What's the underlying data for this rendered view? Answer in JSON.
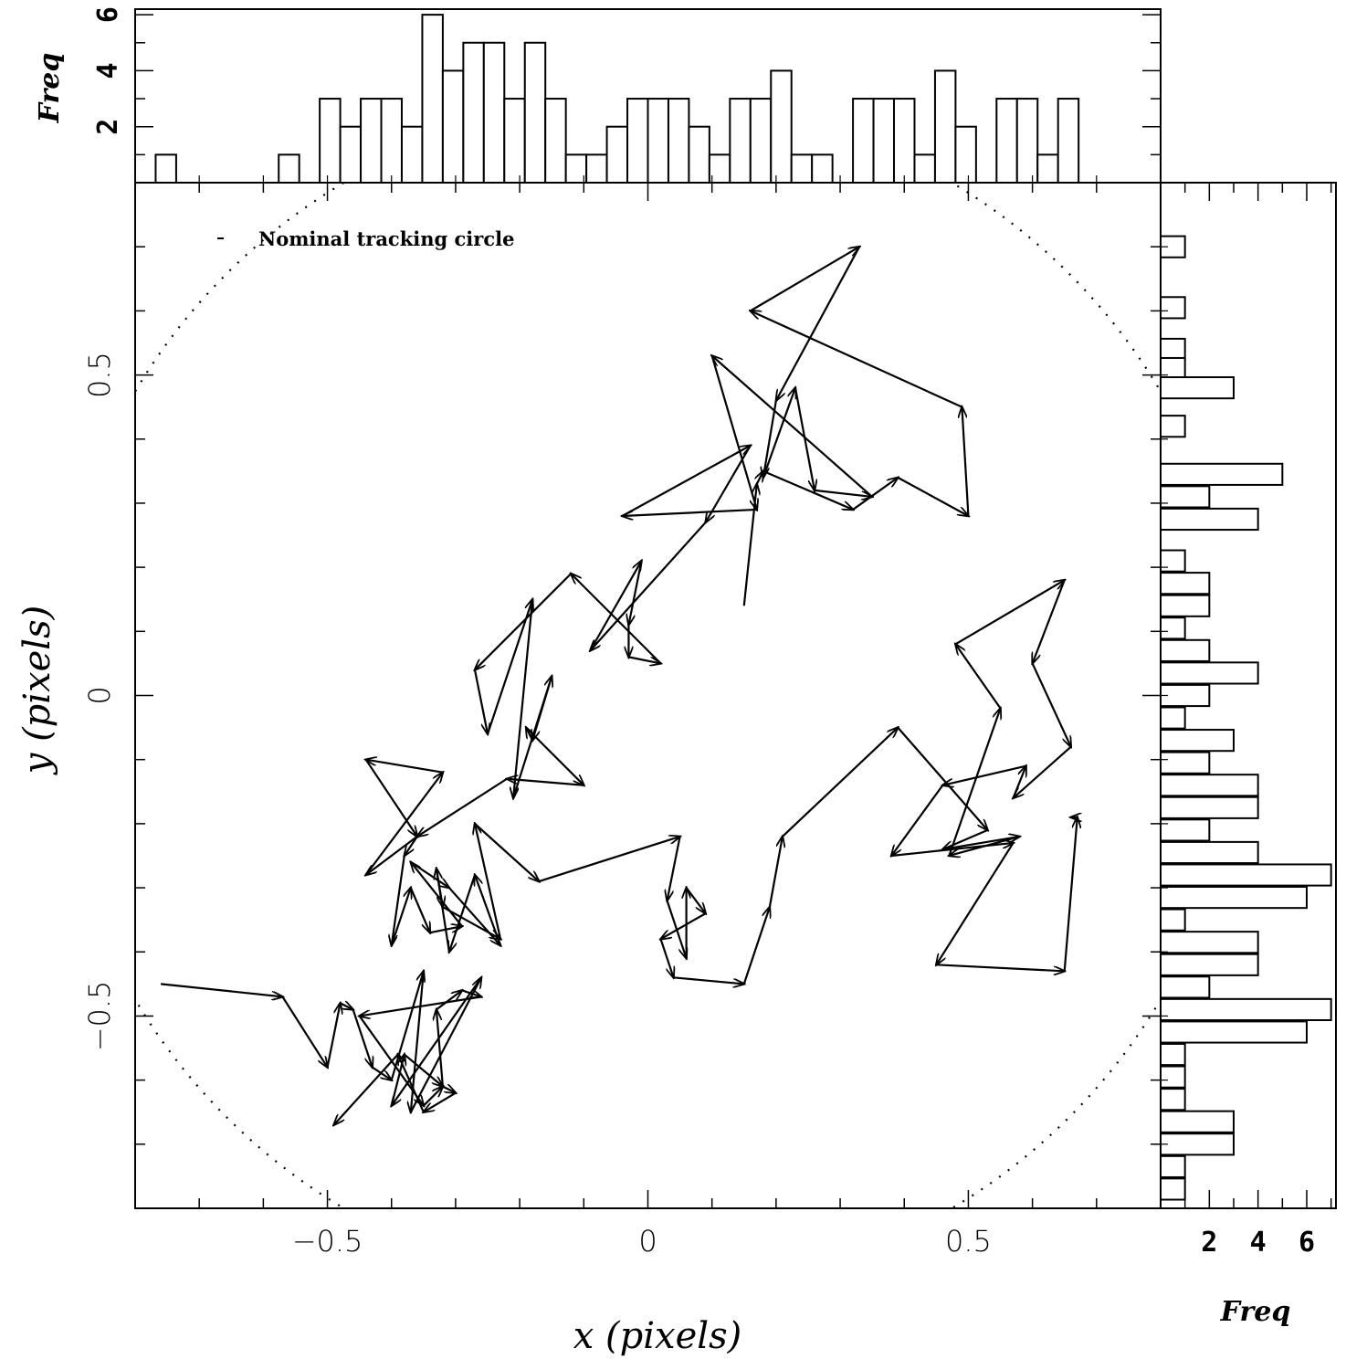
{
  "chart_data": {
    "type": "line",
    "annotation": "Nominal tracking circle",
    "xlabel": "x (pixels)",
    "ylabel": "y (pixels)",
    "xlim": [
      -0.8,
      0.8
    ],
    "ylim": [
      -0.8,
      0.8
    ],
    "xticks": [
      {
        "v": -0.5,
        "t": "−0.5"
      },
      {
        "v": 0,
        "t": "0"
      },
      {
        "v": 0.5,
        "t": "0.5"
      }
    ],
    "yticks": [
      {
        "v": -0.5,
        "t": "−0.5"
      },
      {
        "v": 0,
        "t": "0"
      },
      {
        "v": 0.5,
        "t": "0.5"
      }
    ],
    "grid": false,
    "path": [
      [
        0.15,
        0.14
      ],
      [
        0.17,
        0.33
      ],
      [
        0.18,
        0.35
      ],
      [
        0.32,
        0.29
      ],
      [
        0.39,
        0.34
      ],
      [
        0.5,
        0.28
      ],
      [
        0.49,
        0.45
      ],
      [
        0.16,
        0.6
      ],
      [
        0.33,
        0.7
      ],
      [
        0.2,
        0.46
      ],
      [
        0.18,
        0.34
      ],
      [
        0.23,
        0.48
      ],
      [
        0.26,
        0.32
      ],
      [
        0.35,
        0.31
      ],
      [
        0.1,
        0.53
      ],
      [
        0.17,
        0.29
      ],
      [
        -0.04,
        0.28
      ],
      [
        0.16,
        0.39
      ],
      [
        0.09,
        0.27
      ],
      [
        -0.09,
        0.07
      ],
      [
        -0.01,
        0.21
      ],
      [
        -0.03,
        0.11
      ],
      [
        -0.03,
        0.06
      ],
      [
        0.02,
        0.05
      ],
      [
        -0.12,
        0.19
      ],
      [
        -0.27,
        0.04
      ],
      [
        -0.25,
        -0.06
      ],
      [
        -0.18,
        0.15
      ],
      [
        -0.21,
        -0.16
      ],
      [
        -0.15,
        0.03
      ],
      [
        -0.18,
        -0.07
      ],
      [
        -0.19,
        -0.05
      ],
      [
        -0.1,
        -0.14
      ],
      [
        -0.22,
        -0.13
      ],
      [
        -0.36,
        -0.22
      ],
      [
        -0.44,
        -0.28
      ],
      [
        -0.32,
        -0.12
      ],
      [
        -0.44,
        -0.1
      ],
      [
        -0.36,
        -0.22
      ],
      [
        -0.38,
        -0.25
      ],
      [
        -0.4,
        -0.39
      ],
      [
        -0.37,
        -0.3
      ],
      [
        -0.34,
        -0.37
      ],
      [
        -0.29,
        -0.36
      ],
      [
        -0.37,
        -0.26
      ],
      [
        -0.31,
        -0.3
      ],
      [
        -0.23,
        -0.39
      ],
      [
        -0.27,
        -0.28
      ],
      [
        -0.31,
        -0.4
      ],
      [
        -0.33,
        -0.27
      ],
      [
        -0.32,
        -0.33
      ],
      [
        -0.23,
        -0.38
      ],
      [
        -0.27,
        -0.2
      ],
      [
        -0.17,
        -0.29
      ],
      [
        0.05,
        -0.22
      ],
      [
        0.03,
        -0.32
      ],
      [
        0.06,
        -0.41
      ],
      [
        0.06,
        -0.3
      ],
      [
        0.09,
        -0.34
      ],
      [
        0.02,
        -0.38
      ],
      [
        0.04,
        -0.44
      ],
      [
        0.15,
        -0.45
      ],
      [
        0.19,
        -0.33
      ],
      [
        0.21,
        -0.22
      ],
      [
        0.39,
        -0.05
      ],
      [
        0.53,
        -0.21
      ],
      [
        0.46,
        -0.24
      ],
      [
        0.58,
        -0.22
      ],
      [
        0.47,
        -0.25
      ],
      [
        0.55,
        -0.02
      ],
      [
        0.48,
        0.08
      ],
      [
        0.65,
        0.18
      ],
      [
        0.6,
        0.05
      ],
      [
        0.66,
        -0.08
      ],
      [
        0.57,
        -0.16
      ],
      [
        0.59,
        -0.11
      ],
      [
        0.46,
        -0.14
      ],
      [
        0.38,
        -0.25
      ],
      [
        0.57,
        -0.23
      ],
      [
        0.45,
        -0.42
      ],
      [
        0.65,
        -0.43
      ],
      [
        0.67,
        -0.19
      ],
      [
        0.66,
        -0.19
      ]
    ],
    "path_b": [
      [
        -0.76,
        -0.45
      ],
      [
        -0.57,
        -0.47
      ],
      [
        -0.5,
        -0.58
      ],
      [
        -0.48,
        -0.48
      ],
      [
        -0.46,
        -0.49
      ],
      [
        -0.43,
        -0.58
      ],
      [
        -0.4,
        -0.6
      ],
      [
        -0.35,
        -0.43
      ],
      [
        -0.37,
        -0.65
      ],
      [
        -0.26,
        -0.44
      ],
      [
        -0.4,
        -0.64
      ],
      [
        -0.38,
        -0.56
      ],
      [
        -0.32,
        -0.61
      ],
      [
        -0.33,
        -0.49
      ],
      [
        -0.29,
        -0.46
      ],
      [
        -0.26,
        -0.47
      ],
      [
        -0.45,
        -0.5
      ],
      [
        -0.35,
        -0.64
      ],
      [
        -0.32,
        -0.61
      ],
      [
        -0.3,
        -0.62
      ],
      [
        -0.35,
        -0.65
      ],
      [
        -0.39,
        -0.56
      ],
      [
        -0.49,
        -0.67
      ]
    ],
    "hist_x": {
      "ylabel": "Freq",
      "bin_width": 0.032,
      "start": -0.8,
      "counts": [
        0,
        1,
        0,
        0,
        0,
        0,
        0,
        1,
        0,
        3,
        2,
        3,
        3,
        2,
        6,
        4,
        5,
        5,
        3,
        5,
        3,
        1,
        1,
        2,
        3,
        3,
        3,
        2,
        1,
        3,
        3,
        4,
        1,
        1,
        0,
        3,
        3,
        3,
        1,
        4,
        2,
        0,
        3,
        3,
        1,
        3,
        0,
        0,
        0,
        0
      ],
      "yticks": [
        {
          "v": 2,
          "t": "2"
        },
        {
          "v": 4,
          "t": "4"
        },
        {
          "v": 6,
          "t": "6"
        }
      ],
      "ymax": 6.2
    },
    "hist_y": {
      "xlabel": "Freq",
      "bin_width": 0.033,
      "start": -0.8,
      "counts": [
        0,
        0,
        0,
        0,
        0,
        0,
        0,
        0,
        0,
        0,
        0,
        0,
        0,
        0,
        0,
        0,
        0,
        0,
        0,
        0,
        0,
        0,
        0,
        0,
        0,
        0,
        0,
        0,
        0,
        0,
        0,
        0,
        0,
        0,
        0,
        0,
        0,
        0,
        0,
        0,
        0,
        0,
        0,
        0,
        0,
        0,
        0,
        0,
        0,
        0
      ],
      "rows": [
        {
          "y": 0.7,
          "c": 1
        },
        {
          "y": 0.605,
          "c": 1
        },
        {
          "y": 0.54,
          "c": 1
        },
        {
          "y": 0.51,
          "c": 1
        },
        {
          "y": 0.48,
          "c": 3
        },
        {
          "y": 0.42,
          "c": 1
        },
        {
          "y": 0.345,
          "c": 5
        },
        {
          "y": 0.31,
          "c": 2
        },
        {
          "y": 0.275,
          "c": 4
        },
        {
          "y": 0.21,
          "c": 1
        },
        {
          "y": 0.175,
          "c": 2
        },
        {
          "y": 0.14,
          "c": 2
        },
        {
          "y": 0.105,
          "c": 1
        },
        {
          "y": 0.07,
          "c": 2
        },
        {
          "y": 0.035,
          "c": 4
        },
        {
          "y": 0.0,
          "c": 2
        },
        {
          "y": -0.035,
          "c": 1
        },
        {
          "y": -0.07,
          "c": 3
        },
        {
          "y": -0.105,
          "c": 2
        },
        {
          "y": -0.14,
          "c": 4
        },
        {
          "y": -0.175,
          "c": 4
        },
        {
          "y": -0.21,
          "c": 2
        },
        {
          "y": -0.245,
          "c": 4
        },
        {
          "y": -0.28,
          "c": 7
        },
        {
          "y": -0.315,
          "c": 6
        },
        {
          "y": -0.35,
          "c": 1
        },
        {
          "y": -0.385,
          "c": 4
        },
        {
          "y": -0.42,
          "c": 4
        },
        {
          "y": -0.455,
          "c": 2
        },
        {
          "y": -0.49,
          "c": 7
        },
        {
          "y": -0.525,
          "c": 6
        },
        {
          "y": -0.56,
          "c": 1
        },
        {
          "y": -0.595,
          "c": 1
        },
        {
          "y": -0.63,
          "c": 1
        },
        {
          "y": -0.665,
          "c": 3
        },
        {
          "y": -0.7,
          "c": 3
        },
        {
          "y": -0.735,
          "c": 1
        },
        {
          "y": -0.77,
          "c": 1
        }
      ],
      "xticks": [
        {
          "v": 2,
          "t": "2"
        },
        {
          "v": 4,
          "t": "4"
        },
        {
          "v": 6,
          "t": "6"
        }
      ],
      "xmax": 7.2
    }
  }
}
